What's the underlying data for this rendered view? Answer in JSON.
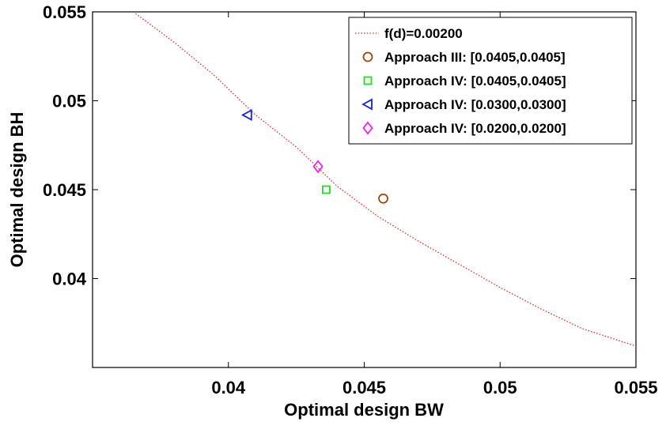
{
  "chart_data": {
    "type": "scatter",
    "xlabel": "Optimal design BW",
    "ylabel": "Optimal design BH",
    "xlim": [
      0.035,
      0.055
    ],
    "ylim": [
      0.035,
      0.055
    ],
    "xticks": [
      "0.04",
      "0.045",
      "0.05",
      "0.055"
    ],
    "yticks": [
      "0.04",
      "0.045",
      "0.05",
      "0.055"
    ],
    "xtick_values": [
      0.04,
      0.045,
      0.05,
      0.055
    ],
    "ytick_values": [
      0.04,
      0.045,
      0.05,
      0.055
    ],
    "grid": false,
    "legend_position": "top-right",
    "curve": {
      "name": "f(d)=0.00200",
      "color": "#e03020",
      "style": "dotted",
      "points": [
        [
          0.0365,
          0.055
        ],
        [
          0.038,
          0.0533
        ],
        [
          0.0395,
          0.0514
        ],
        [
          0.041,
          0.0492
        ],
        [
          0.0425,
          0.0474
        ],
        [
          0.044,
          0.0452
        ],
        [
          0.0455,
          0.0435
        ],
        [
          0.047,
          0.0421
        ],
        [
          0.0485,
          0.0408
        ],
        [
          0.05,
          0.0395
        ],
        [
          0.0515,
          0.0383
        ],
        [
          0.053,
          0.0372
        ],
        [
          0.055,
          0.0362
        ]
      ]
    },
    "series": [
      {
        "name": "Approach III: [0.0405,0.0405]",
        "marker": "circle",
        "color": "#a0460a",
        "x": 0.0457,
        "y": 0.0445
      },
      {
        "name": "Approach IV: [0.0405,0.0405]",
        "marker": "square",
        "color": "#22dd22",
        "x": 0.0436,
        "y": 0.045
      },
      {
        "name": "Approach IV: [0.0300,0.0300]",
        "marker": "triangle-left",
        "color": "#1020ee",
        "x": 0.0407,
        "y": 0.0492
      },
      {
        "name": "Approach IV: [0.0200,0.0200]",
        "marker": "diamond",
        "color": "#ee22ee",
        "x": 0.0433,
        "y": 0.0463
      }
    ]
  }
}
